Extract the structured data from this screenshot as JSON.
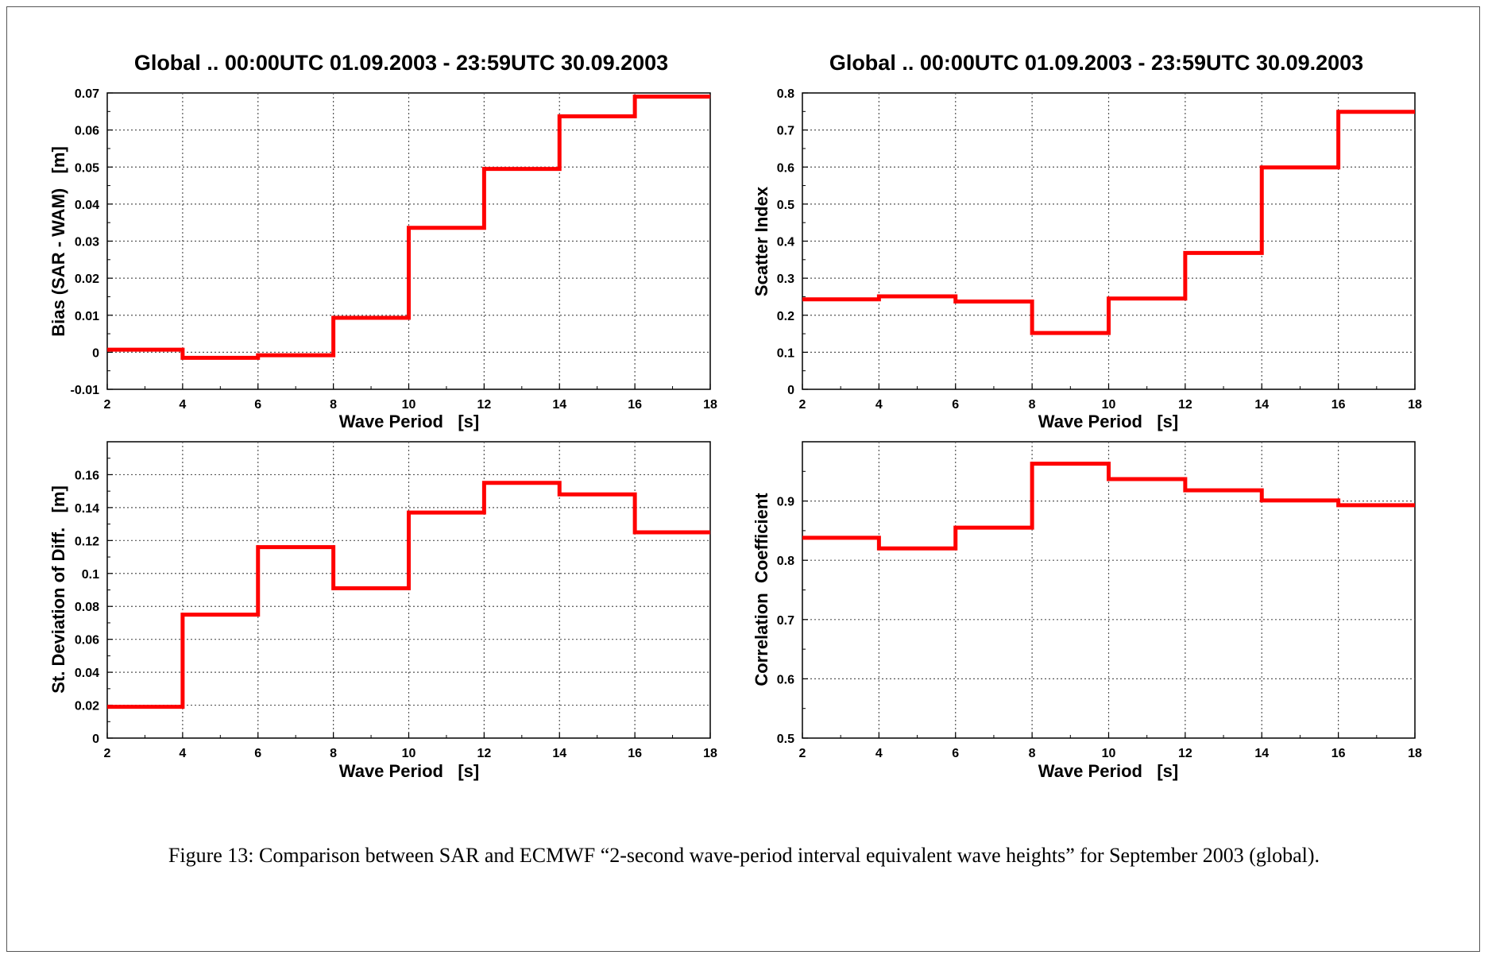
{
  "chart_data": [
    {
      "type": "line",
      "step": true,
      "title": "Global .. 00:00UTC 01.09.2003 - 23:59UTC 30.09.2003",
      "xlabel": "Wave Period   [s]",
      "ylabel": "Bias (SAR - WAM)   [m]",
      "xlim": [
        2,
        18
      ],
      "ylim": [
        -0.01,
        0.07
      ],
      "xticks": [
        2,
        4,
        6,
        8,
        10,
        12,
        14,
        16,
        18
      ],
      "yticks": [
        -0.01,
        0,
        0.01,
        0.02,
        0.03,
        0.04,
        0.05,
        0.06,
        0.07
      ],
      "ytick_labels": [
        "-0.01",
        "0",
        "0.01",
        "0.02",
        "0.03",
        "0.04",
        "0.05",
        "0.06",
        "0.07"
      ],
      "grid": true,
      "color": "#ff0000",
      "bins": [
        [
          2,
          4
        ],
        [
          4,
          6
        ],
        [
          6,
          8
        ],
        [
          8,
          10
        ],
        [
          10,
          12
        ],
        [
          12,
          14
        ],
        [
          14,
          16
        ],
        [
          16,
          18
        ]
      ],
      "values": [
        0.0007,
        -0.0015,
        -0.0008,
        0.0093,
        0.0336,
        0.0495,
        0.0637,
        0.069
      ]
    },
    {
      "type": "line",
      "step": true,
      "title": "Global .. 00:00UTC 01.09.2003 - 23:59UTC 30.09.2003",
      "xlabel": "Wave Period   [s]",
      "ylabel": "Scatter Index",
      "xlim": [
        2,
        18
      ],
      "ylim": [
        0,
        0.8
      ],
      "xticks": [
        2,
        4,
        6,
        8,
        10,
        12,
        14,
        16,
        18
      ],
      "yticks": [
        0,
        0.1,
        0.2,
        0.3,
        0.4,
        0.5,
        0.6,
        0.7,
        0.8
      ],
      "ytick_labels": [
        "0",
        "0.1",
        "0.2",
        "0.3",
        "0.4",
        "0.5",
        "0.6",
        "0.7",
        "0.8"
      ],
      "grid": true,
      "color": "#ff0000",
      "bins": [
        [
          2,
          4
        ],
        [
          4,
          6
        ],
        [
          6,
          8
        ],
        [
          8,
          10
        ],
        [
          10,
          12
        ],
        [
          12,
          14
        ],
        [
          14,
          16
        ],
        [
          16,
          18
        ]
      ],
      "values": [
        0.243,
        0.251,
        0.237,
        0.152,
        0.245,
        0.368,
        0.599,
        0.749
      ]
    },
    {
      "type": "line",
      "step": true,
      "title": "",
      "xlabel": "Wave Period   [s]",
      "ylabel": "St. Deviation of Diff.   [m]",
      "xlim": [
        2,
        18
      ],
      "ylim": [
        0,
        0.18
      ],
      "xticks": [
        2,
        4,
        6,
        8,
        10,
        12,
        14,
        16,
        18
      ],
      "yticks": [
        0,
        0.02,
        0.04,
        0.06,
        0.08,
        0.1,
        0.12,
        0.14,
        0.16
      ],
      "ytick_labels": [
        "0",
        "0.02",
        "0.04",
        "0.06",
        "0.08",
        "0.1",
        "0.12",
        "0.14",
        "0.16"
      ],
      "grid": true,
      "color": "#ff0000",
      "bins": [
        [
          2,
          4
        ],
        [
          4,
          6
        ],
        [
          6,
          8
        ],
        [
          8,
          10
        ],
        [
          10,
          12
        ],
        [
          12,
          14
        ],
        [
          14,
          16
        ],
        [
          16,
          18
        ]
      ],
      "values": [
        0.019,
        0.075,
        0.116,
        0.091,
        0.137,
        0.155,
        0.148,
        0.125
      ]
    },
    {
      "type": "line",
      "step": true,
      "title": "",
      "xlabel": "Wave Period   [s]",
      "ylabel": "Correlation  Coefficient",
      "xlim": [
        2,
        18
      ],
      "ylim": [
        0.5,
        1.0
      ],
      "xticks": [
        2,
        4,
        6,
        8,
        10,
        12,
        14,
        16,
        18
      ],
      "yticks": [
        0.5,
        0.6,
        0.7,
        0.8,
        0.9
      ],
      "ytick_labels": [
        "0.5",
        "0.6",
        "0.7",
        "0.8",
        "0.9"
      ],
      "grid": true,
      "color": "#ff0000",
      "bins": [
        [
          2,
          4
        ],
        [
          4,
          6
        ],
        [
          6,
          8
        ],
        [
          8,
          10
        ],
        [
          10,
          12
        ],
        [
          12,
          14
        ],
        [
          14,
          16
        ],
        [
          16,
          18
        ]
      ],
      "values": [
        0.838,
        0.82,
        0.855,
        0.963,
        0.937,
        0.918,
        0.901,
        0.893
      ]
    }
  ],
  "caption": "Figure 13: Comparison between SAR and ECMWF “2-second wave-period interval equivalent wave heights” for September 2003 (global)."
}
